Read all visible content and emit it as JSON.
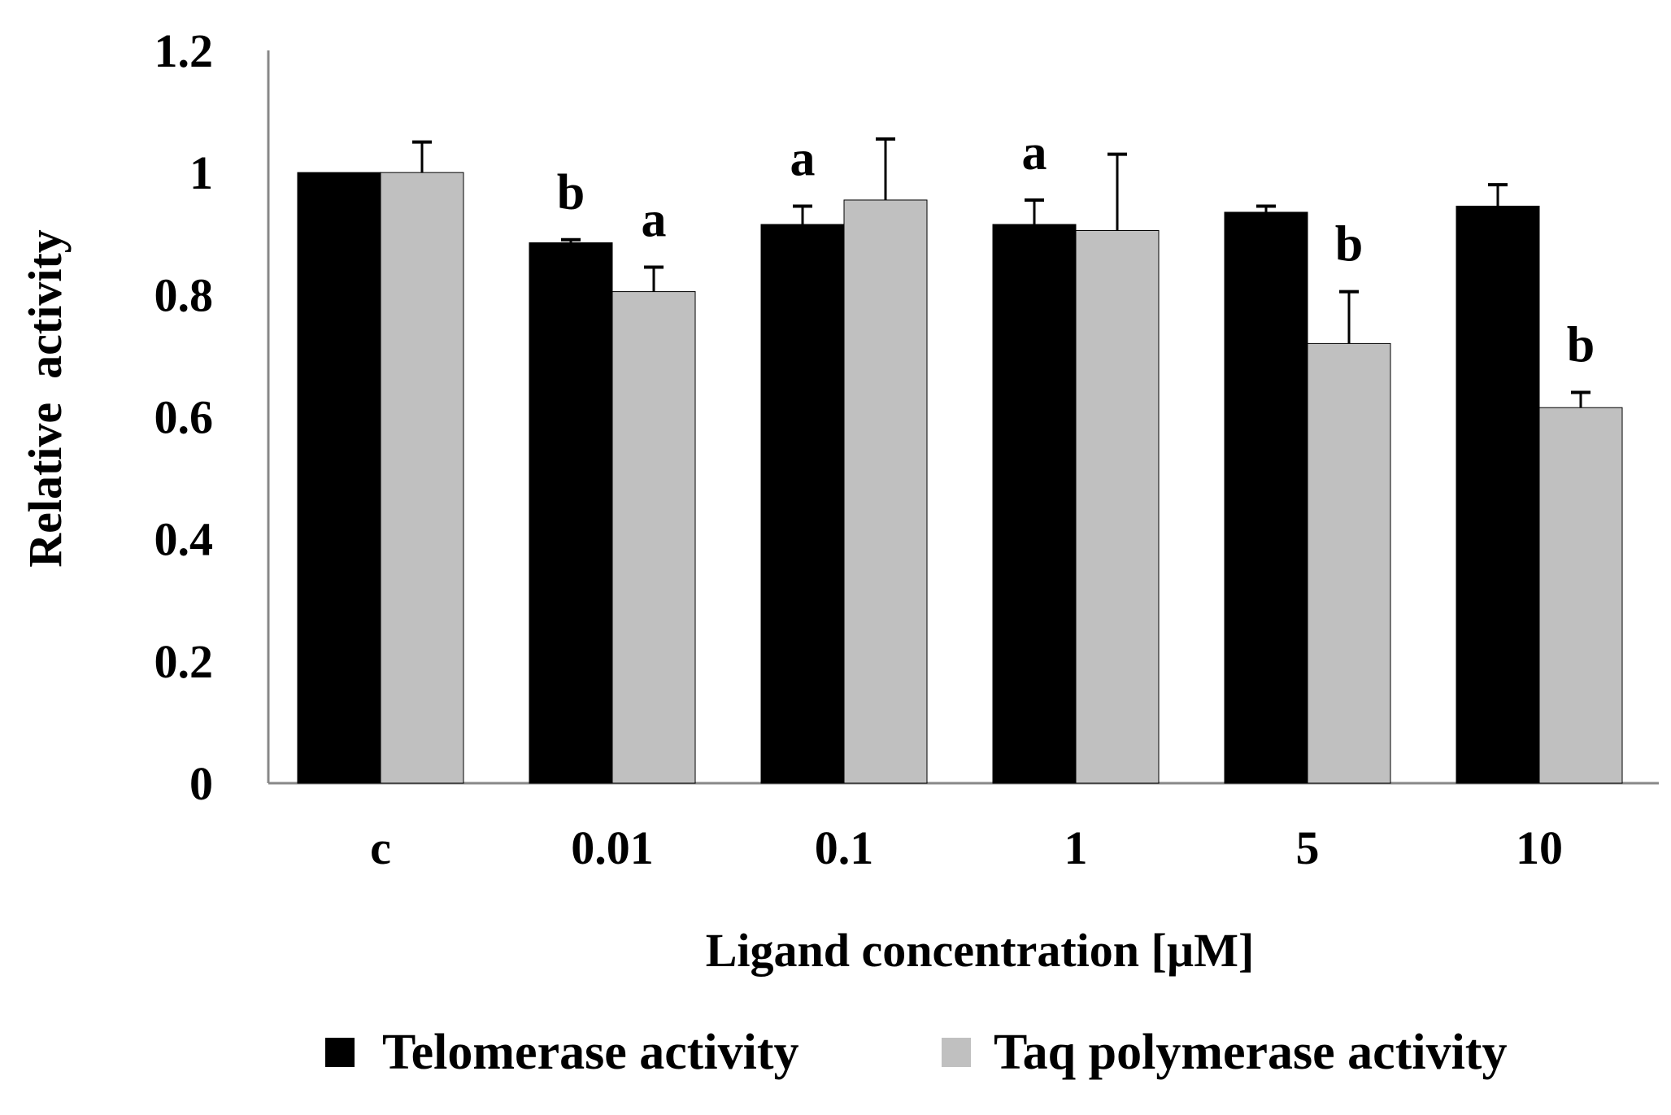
{
  "chart_data": {
    "type": "bar",
    "xlabel": "Ligand concentration [µM]",
    "ylabel": "Relative  activity",
    "ylim": [
      0,
      1.2
    ],
    "yticks": [
      "0",
      "0.2",
      "0.4",
      "0.6",
      "0.8",
      "1",
      "1.2"
    ],
    "grid": false,
    "legend_position": "bottom",
    "categories": [
      "c",
      "0.01",
      "0.1",
      "1",
      "5",
      "10"
    ],
    "series": [
      {
        "name": "Telomerase activity",
        "color": "#000000",
        "values": [
          1.0,
          0.885,
          0.915,
          0.915,
          0.935,
          0.945
        ],
        "errors": [
          0.0,
          0.005,
          0.03,
          0.04,
          0.01,
          0.035
        ],
        "significance": [
          "",
          "b",
          "a",
          "a",
          "",
          ""
        ]
      },
      {
        "name": "Taq polymerase activity",
        "color": "#c0c0c0",
        "values": [
          1.0,
          0.805,
          0.955,
          0.905,
          0.72,
          0.615
        ],
        "errors": [
          0.05,
          0.04,
          0.1,
          0.125,
          0.085,
          0.025
        ],
        "significance": [
          "",
          "a",
          "",
          "",
          "b",
          "b"
        ]
      }
    ]
  }
}
